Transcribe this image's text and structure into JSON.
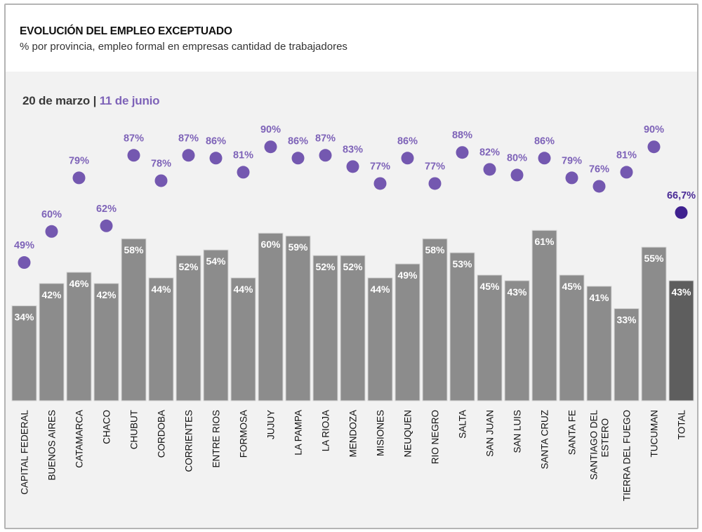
{
  "header": {
    "title": "EVOLUCIÓN DEL EMPLEO EXCEPTUADO",
    "subtitle": "% por provincia, empleo formal en empresas cantidad de trabajadores"
  },
  "legend": {
    "date1": "20 de marzo",
    "separator": " | ",
    "date2": "11 de junio"
  },
  "colors": {
    "bar": "#8c8c8c",
    "bar_total": "#5e5e5e",
    "dot": "#7458b0",
    "dot_total": "#3f218f",
    "dot_label": "#7e63b8",
    "dot_label_total": "#4a2b96",
    "background": "#f2f2f2"
  },
  "chart_data": {
    "type": "bar",
    "title": "EVOLUCIÓN DEL EMPLEO EXCEPTUADO",
    "subtitle": "% por provincia, empleo formal en empresas cantidad de trabajadores",
    "xlabel": "",
    "ylabel": "",
    "ylim": [
      0,
      100
    ],
    "grid": false,
    "legend": "top-left",
    "categories": [
      [
        "CAPITAL FEDERAL"
      ],
      [
        "BUENOS AIRES"
      ],
      [
        "CATAMARCA"
      ],
      [
        "CHACO"
      ],
      [
        "CHUBUT"
      ],
      [
        "CORDOBA"
      ],
      [
        "CORRIENTES"
      ],
      [
        "ENTRE RIOS"
      ],
      [
        "FORMOSA"
      ],
      [
        "JUJUY"
      ],
      [
        "LA PAMPA"
      ],
      [
        "LA RIOJA"
      ],
      [
        "MENDOZA"
      ],
      [
        "MISIONES"
      ],
      [
        "NEUQUEN"
      ],
      [
        "RIO NEGRO"
      ],
      [
        "SALTA"
      ],
      [
        "SAN JUAN"
      ],
      [
        "SAN LUIS"
      ],
      [
        "SANTA CRUZ"
      ],
      [
        "SANTA FE"
      ],
      [
        "SANTIAGO DEL",
        "ESTERO"
      ],
      [
        "TIERRA DEL FUEGO"
      ],
      [
        "TUCUMAN"
      ],
      [
        "TOTAL"
      ]
    ],
    "series": [
      {
        "name": "20 de marzo",
        "kind": "bar",
        "values": [
          34,
          42,
          46,
          42,
          58,
          44,
          52,
          54,
          44,
          60,
          59,
          52,
          52,
          44,
          49,
          58,
          53,
          45,
          43,
          61,
          45,
          41,
          33,
          55,
          43
        ],
        "labels": [
          "34%",
          "42%",
          "46%",
          "42%",
          "58%",
          "44%",
          "52%",
          "54%",
          "44%",
          "60%",
          "59%",
          "52%",
          "52%",
          "44%",
          "49%",
          "58%",
          "53%",
          "45%",
          "43%",
          "61%",
          "45%",
          "41%",
          "33%",
          "55%",
          "43%"
        ]
      },
      {
        "name": "11 de junio",
        "kind": "dot",
        "values": [
          49,
          60,
          79,
          62,
          87,
          78,
          87,
          86,
          81,
          90,
          86,
          87,
          83,
          77,
          86,
          77,
          88,
          82,
          80,
          86,
          79,
          76,
          81,
          90,
          66.7
        ],
        "labels": [
          "49%",
          "60%",
          "79%",
          "62%",
          "87%",
          "78%",
          "87%",
          "86%",
          "81%",
          "90%",
          "86%",
          "87%",
          "83%",
          "77%",
          "86%",
          "77%",
          "88%",
          "82%",
          "80%",
          "86%",
          "79%",
          "76%",
          "81%",
          "90%",
          "66,7%"
        ]
      }
    ]
  }
}
